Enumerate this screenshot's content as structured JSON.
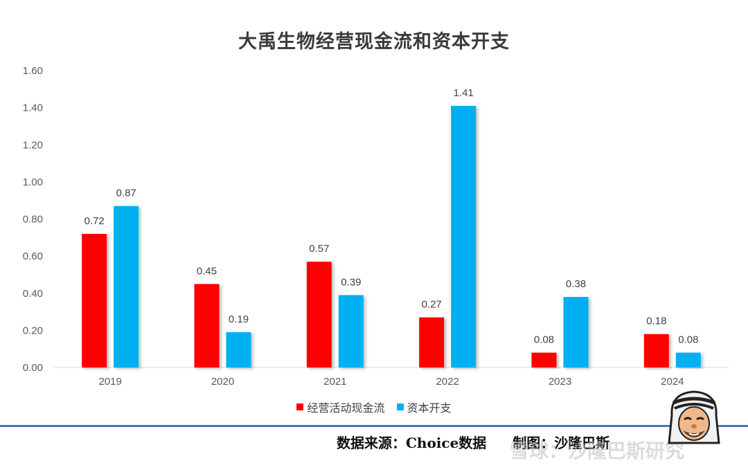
{
  "chart_data": {
    "type": "bar",
    "title": "大禹生物经营现金流和资本开支",
    "categories": [
      "2019",
      "2020",
      "2021",
      "2022",
      "2023",
      "2024"
    ],
    "series": [
      {
        "name": "经营活动现金流",
        "values": [
          0.72,
          0.45,
          0.57,
          0.27,
          0.08,
          0.18
        ],
        "color": "#ff0000"
      },
      {
        "name": "资本开支",
        "values": [
          0.87,
          0.19,
          0.39,
          1.41,
          0.38,
          0.08
        ],
        "color": "#00b0f0"
      }
    ],
    "data_labels": [
      [
        "0.72",
        "0.45",
        "0.57",
        "0.27",
        "0.08",
        "0.18"
      ],
      [
        "0.87",
        "0.19",
        "0.39",
        "1.41",
        "0.38",
        "0.08"
      ]
    ],
    "ylim": [
      0,
      1.6
    ],
    "yticks": [
      "0.00",
      "0.20",
      "0.40",
      "0.60",
      "0.80",
      "1.00",
      "1.20",
      "1.40",
      "1.60"
    ],
    "grid": false,
    "legend_position": "bottom"
  },
  "footer": {
    "source": "数据来源：Choice数据",
    "author": "制图：沙隆巴斯"
  },
  "watermark": "雪球：沙隆巴斯研究",
  "mascot_icon": "cartoon-man-with-headscarf"
}
